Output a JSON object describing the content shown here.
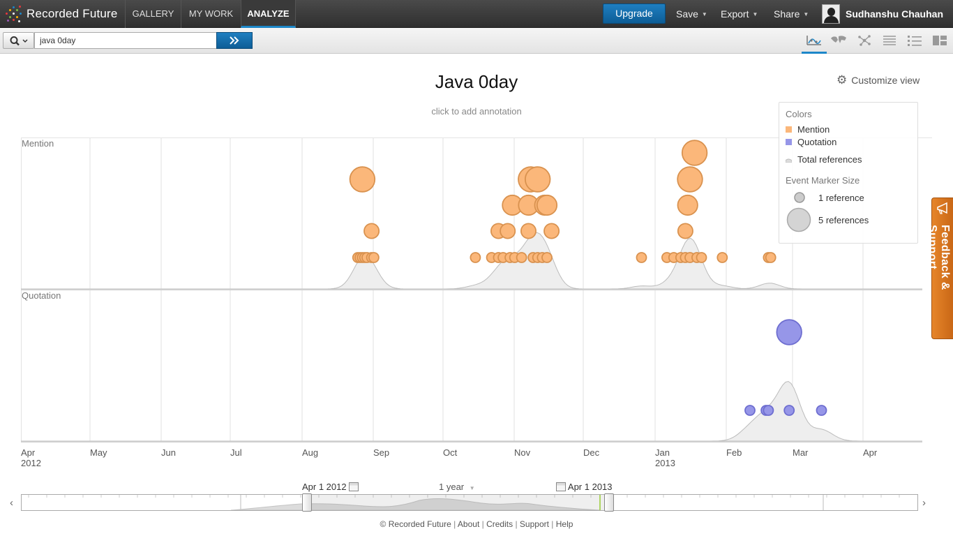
{
  "app": {
    "brand": "Recorded Future"
  },
  "nav": {
    "tabs": [
      {
        "label": "GALLERY"
      },
      {
        "label": "MY WORK"
      },
      {
        "label": "ANALYZE"
      }
    ]
  },
  "header": {
    "upgrade_label": "Upgrade",
    "menus": [
      {
        "label": "Save"
      },
      {
        "label": "Export"
      },
      {
        "label": "Share"
      }
    ],
    "user_name": "Sudhanshu Chauhan"
  },
  "search": {
    "value": "java 0day"
  },
  "page": {
    "title": "Java 0day",
    "annotation_hint": "click to add annotation",
    "customize_label": "Customize view"
  },
  "legend": {
    "colors_title": "Colors",
    "items": [
      {
        "label": "Mention",
        "color": "#fbb77a"
      },
      {
        "label": "Quotation",
        "color": "#9696e8"
      },
      {
        "label": "Total references"
      }
    ],
    "size_title": "Event Marker Size",
    "size_items": [
      {
        "label": "1 reference"
      },
      {
        "label": "5 references"
      }
    ]
  },
  "feedback": {
    "label": "Feedback & Support"
  },
  "chart_data": {
    "type": "scatter",
    "rows": [
      "Mention",
      "Quotation"
    ],
    "x_ticks": [
      {
        "label": "Apr",
        "sub": "2012"
      },
      {
        "label": "May",
        "sub": ""
      },
      {
        "label": "Jun",
        "sub": ""
      },
      {
        "label": "Jul",
        "sub": ""
      },
      {
        "label": "Aug",
        "sub": ""
      },
      {
        "label": "Sep",
        "sub": ""
      },
      {
        "label": "Oct",
        "sub": ""
      },
      {
        "label": "Nov",
        "sub": ""
      },
      {
        "label": "Dec",
        "sub": ""
      },
      {
        "label": "Jan",
        "sub": "2013"
      },
      {
        "label": "Feb",
        "sub": ""
      },
      {
        "label": "Mar",
        "sub": ""
      },
      {
        "label": "Apr",
        "sub": ""
      }
    ],
    "mention_events": [
      {
        "date": "2012-08-27",
        "refs": 4
      },
      {
        "date": "2012-08-31",
        "refs": 2
      },
      {
        "date": "2012-08-25",
        "refs": 1
      },
      {
        "date": "2012-08-26",
        "refs": 1
      },
      {
        "date": "2012-08-27",
        "refs": 1
      },
      {
        "date": "2012-08-28",
        "refs": 1
      },
      {
        "date": "2012-08-29",
        "refs": 1
      },
      {
        "date": "2012-08-31",
        "refs": 1
      },
      {
        "date": "2012-09-01",
        "refs": 1
      },
      {
        "date": "2012-10-15",
        "refs": 1
      },
      {
        "date": "2012-10-22",
        "refs": 1
      },
      {
        "date": "2012-10-25",
        "refs": 1
      },
      {
        "date": "2012-10-27",
        "refs": 1
      },
      {
        "date": "2012-10-30",
        "refs": 1
      },
      {
        "date": "2012-11-01",
        "refs": 1
      },
      {
        "date": "2012-11-04",
        "refs": 1
      },
      {
        "date": "2012-11-09",
        "refs": 1
      },
      {
        "date": "2012-11-11",
        "refs": 1
      },
      {
        "date": "2012-11-13",
        "refs": 1
      },
      {
        "date": "2012-11-15",
        "refs": 1
      },
      {
        "date": "2012-10-25",
        "refs": 2
      },
      {
        "date": "2012-10-29",
        "refs": 2
      },
      {
        "date": "2012-11-07",
        "refs": 2
      },
      {
        "date": "2012-11-17",
        "refs": 2
      },
      {
        "date": "2012-10-31",
        "refs": 3
      },
      {
        "date": "2012-11-07",
        "refs": 3
      },
      {
        "date": "2012-11-14",
        "refs": 3
      },
      {
        "date": "2012-11-15",
        "refs": 3
      },
      {
        "date": "2012-11-08",
        "refs": 4
      },
      {
        "date": "2012-11-11",
        "refs": 4
      },
      {
        "date": "2012-12-26",
        "refs": 1
      },
      {
        "date": "2013-01-06",
        "refs": 1
      },
      {
        "date": "2013-01-09",
        "refs": 1
      },
      {
        "date": "2013-01-12",
        "refs": 1
      },
      {
        "date": "2013-01-14",
        "refs": 1
      },
      {
        "date": "2013-01-16",
        "refs": 1
      },
      {
        "date": "2013-01-19",
        "refs": 1
      },
      {
        "date": "2013-01-21",
        "refs": 1
      },
      {
        "date": "2013-01-30",
        "refs": 1
      },
      {
        "date": "2013-01-14",
        "refs": 2
      },
      {
        "date": "2013-01-15",
        "refs": 3
      },
      {
        "date": "2013-01-16",
        "refs": 4
      },
      {
        "date": "2013-01-18",
        "refs": 5
      },
      {
        "date": "2013-02-19",
        "refs": 1
      },
      {
        "date": "2013-02-20",
        "refs": 1
      }
    ],
    "quotation_events": [
      {
        "date": "2013-02-11",
        "refs": 1
      },
      {
        "date": "2013-02-18",
        "refs": 1
      },
      {
        "date": "2013-02-19",
        "refs": 1
      },
      {
        "date": "2013-02-28",
        "refs": 1
      },
      {
        "date": "2013-03-14",
        "refs": 1
      },
      {
        "date": "2013-02-28",
        "refs": 4
      }
    ]
  },
  "timeline": {
    "start_label": "Apr 1 2012",
    "end_label": "Apr 1 2013",
    "period_label": "1 year"
  },
  "footer": {
    "links": [
      {
        "label": "© Recorded Future"
      },
      {
        "label": "About"
      },
      {
        "label": "Credits"
      },
      {
        "label": "Support"
      },
      {
        "label": "Help"
      }
    ]
  }
}
